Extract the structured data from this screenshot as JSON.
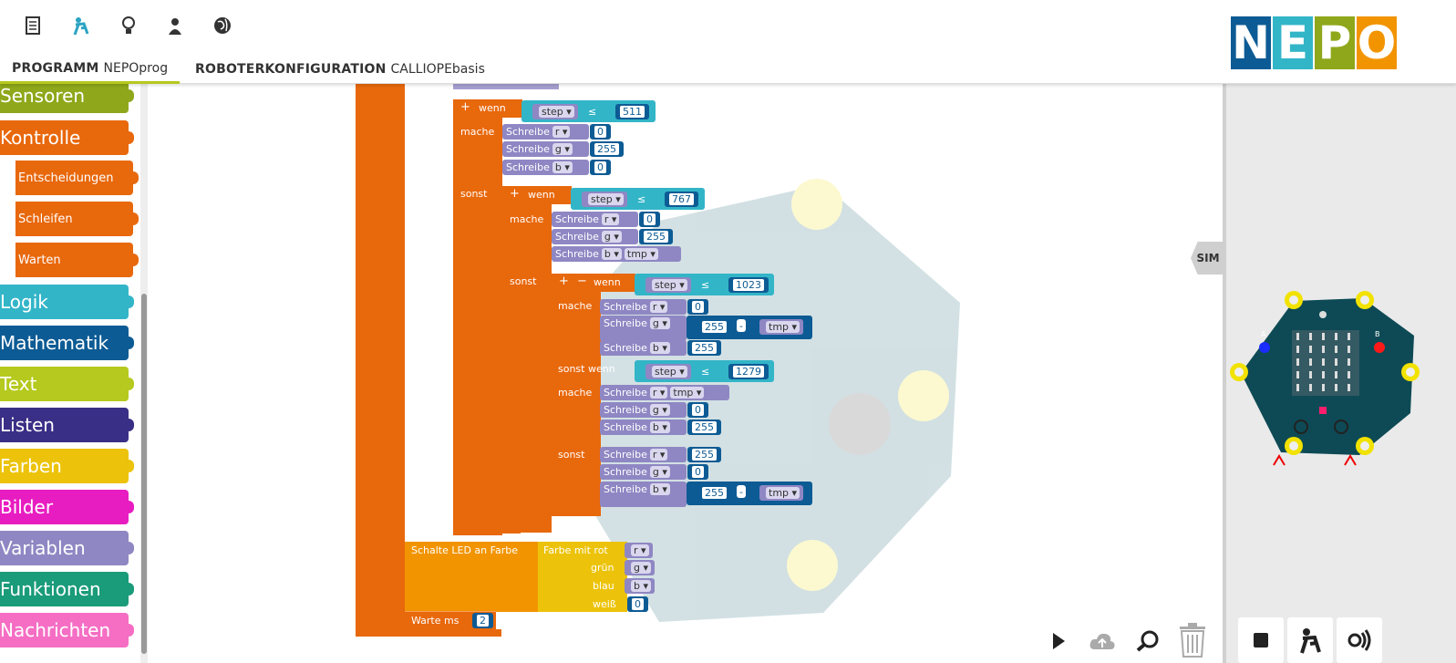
{
  "topbar": {
    "icons": [
      "document-icon",
      "robot-icon",
      "lightbulb-icon",
      "user-icon",
      "globe-icon"
    ],
    "tabs": [
      {
        "bold": "PROGRAMM",
        "name": "NEPOprog"
      },
      {
        "bold": "ROBOTERKONFIGURATION",
        "name": "CALLIOPEbasis"
      }
    ],
    "logo": [
      "N",
      "E",
      "P",
      "O"
    ]
  },
  "toolbox": {
    "categories": [
      {
        "label": "Sensoren",
        "color": "#8fa71a"
      },
      {
        "label": "Kontrolle",
        "color": "#e8680c"
      },
      {
        "label": "Logik",
        "color": "#33b5c8"
      },
      {
        "label": "Mathematik",
        "color": "#0d5b94"
      },
      {
        "label": "Text",
        "color": "#b5c91e"
      },
      {
        "label": "Listen",
        "color": "#3a2f86"
      },
      {
        "label": "Farben",
        "color": "#ecc30a"
      },
      {
        "label": "Bilder",
        "color": "#e81dc1"
      },
      {
        "label": "Variablen",
        "color": "#8f87c3"
      },
      {
        "label": "Funktionen",
        "color": "#1a9b7a"
      },
      {
        "label": "Nachrichten",
        "color": "#f56ec4"
      }
    ],
    "subcategories": [
      "Entscheidungen",
      "Schleifen",
      "Warten"
    ]
  },
  "program": {
    "sonst": "sonst",
    "wenn": "wenn",
    "mache": "mache",
    "sonst_wenn": "sonst wenn",
    "schreibe": "Schreibe",
    "step": "step",
    "le": "≤",
    "minus": "-",
    "tmp": "tmp",
    "r": "r",
    "g": "g",
    "b": "b",
    "v0": "0",
    "v255": "255",
    "v511": "511",
    "v767": "767",
    "v1023": "1023",
    "v1279": "1279",
    "v2": "2",
    "led": "Schalte LED an  Farbe",
    "farbe_mit_rot": "Farbe mit  rot",
    "gruen": "grün",
    "blau": "blau",
    "weiss": "weiß",
    "warte": "Warte ms",
    "plus": "+",
    "minus_sign": "−"
  },
  "sim": {
    "button": "SIM",
    "board_labels": [
      "A",
      "B"
    ]
  },
  "controls": [
    "play-icon",
    "cloud-upload-icon",
    "zoom-icon",
    "trash-icon"
  ],
  "robot_buttons": [
    "stop-icon",
    "robot-icon",
    "sound-icon"
  ]
}
